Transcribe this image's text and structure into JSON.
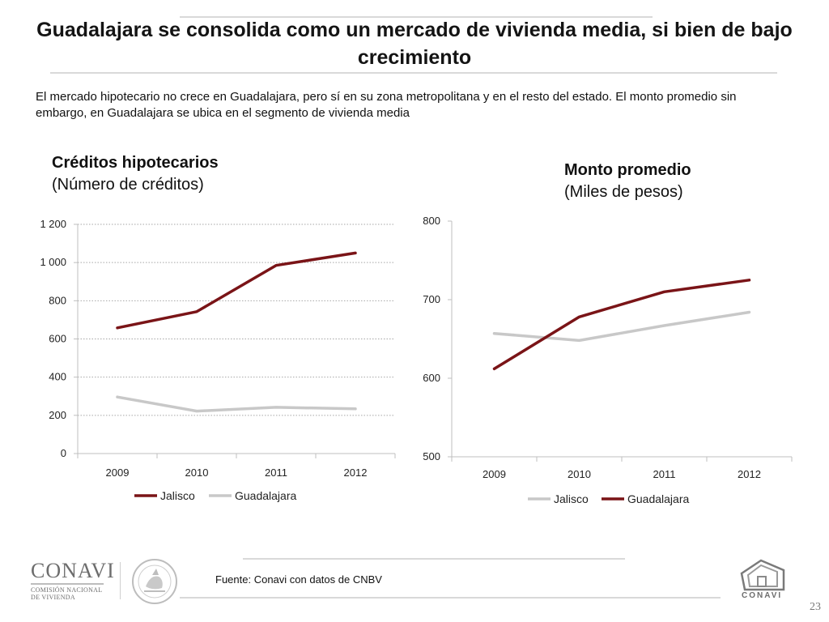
{
  "slide": {
    "title": "Guadalajara se consolida como un mercado de vivienda media, si bien de bajo crecimiento",
    "subtitle": "El mercado hipotecario  no crece en Guadalajara, pero sí en su zona metropolitana y en el resto del estado. El monto promedio sin embargo, en Guadalajara se ubica en el segmento de vivienda media",
    "source": "Fuente: Conavi con datos de CNBV",
    "page_number": "23"
  },
  "panels": {
    "left": {
      "title": "Créditos hipotecarios",
      "subtitle": "(Número de créditos)"
    },
    "right": {
      "title": "Monto promedio",
      "subtitle": "(Miles de pesos)"
    }
  },
  "logos": {
    "conavi_word": "CONAVI",
    "conavi_line1": "COMISIÓN NACIONAL",
    "conavi_line2": "DE VIVIENDA",
    "house_word": "CONAVI"
  },
  "colors": {
    "dark_red": "#7a1417",
    "light_gray": "#c8c8c8",
    "grid": "#a6a6a6",
    "axis": "#bfbfbf"
  },
  "chart_data": [
    {
      "type": "line",
      "title": "Créditos hipotecarios",
      "subtitle": "(Número de créditos)",
      "categories": [
        "2009",
        "2010",
        "2011",
        "2012"
      ],
      "ylim": [
        0,
        1200
      ],
      "yticks": [
        0,
        200,
        400,
        600,
        800,
        1000,
        1200
      ],
      "ytick_labels": [
        "0",
        "200",
        "400",
        "600",
        "800",
        "1 000",
        "1 200"
      ],
      "grid": true,
      "legend_position": "bottom",
      "series": [
        {
          "name": "Jalisco",
          "color": "#7a1417",
          "values": [
            658,
            743,
            985,
            1050
          ]
        },
        {
          "name": "Guadalajara",
          "color": "#c8c8c8",
          "values": [
            296,
            222,
            242,
            234
          ]
        }
      ]
    },
    {
      "type": "line",
      "title": "Monto promedio",
      "subtitle": "(Miles de pesos)",
      "categories": [
        "2009",
        "2010",
        "2011",
        "2012"
      ],
      "ylim": [
        500,
        800
      ],
      "yticks": [
        500,
        600,
        700,
        800
      ],
      "ytick_labels": [
        "500",
        "600",
        "700",
        "800"
      ],
      "grid": false,
      "legend_position": "bottom",
      "series": [
        {
          "name": "Jalisco",
          "color": "#c8c8c8",
          "values": [
            657,
            648,
            667,
            684
          ]
        },
        {
          "name": "Guadalajara",
          "color": "#7a1417",
          "values": [
            612,
            678,
            710,
            725
          ]
        }
      ]
    }
  ]
}
